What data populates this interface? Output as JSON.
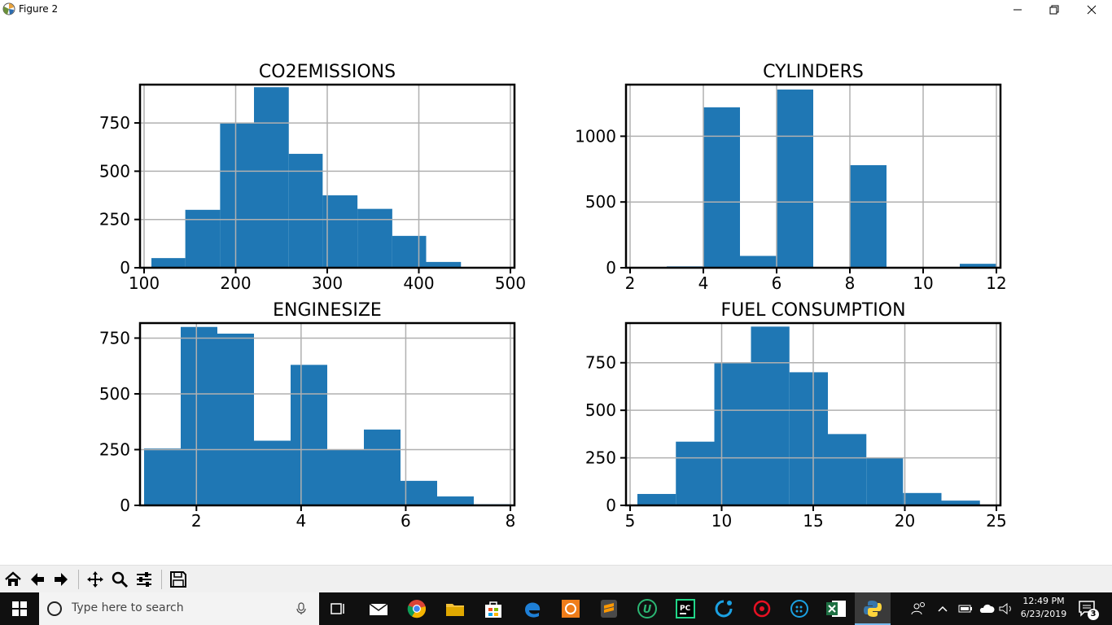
{
  "window": {
    "title": "Figure 2"
  },
  "chart_data": [
    {
      "type": "bar",
      "title": "CO2EMISSIONS",
      "xlim": [
        100,
        500
      ],
      "ylim": [
        0,
        940
      ],
      "xticks": [
        100,
        200,
        300,
        400,
        500
      ],
      "yticks": [
        0,
        250,
        500,
        750
      ],
      "grid": true,
      "bins": [
        {
          "x0": 108,
          "x1": 145,
          "count": 50
        },
        {
          "x0": 145,
          "x1": 183,
          "count": 300
        },
        {
          "x0": 183,
          "x1": 220,
          "count": 750
        },
        {
          "x0": 220,
          "x1": 258,
          "count": 935
        },
        {
          "x0": 258,
          "x1": 295,
          "count": 590
        },
        {
          "x0": 295,
          "x1": 333,
          "count": 375
        },
        {
          "x0": 333,
          "x1": 371,
          "count": 305
        },
        {
          "x0": 371,
          "x1": 408,
          "count": 165
        },
        {
          "x0": 408,
          "x1": 446,
          "count": 30
        },
        {
          "x0": 446,
          "x1": 488,
          "count": 0
        }
      ]
    },
    {
      "type": "bar",
      "title": "CYLINDERS",
      "xlim": [
        2,
        12
      ],
      "ylim": [
        0,
        1380
      ],
      "xticks": [
        2,
        4,
        6,
        8,
        10,
        12
      ],
      "yticks": [
        0,
        500,
        1000
      ],
      "grid": true,
      "bins": [
        {
          "x0": 3,
          "x1": 4,
          "count": 10
        },
        {
          "x0": 4,
          "x1": 5,
          "count": 1220
        },
        {
          "x0": 5,
          "x1": 6,
          "count": 90
        },
        {
          "x0": 6,
          "x1": 7,
          "count": 1355
        },
        {
          "x0": 8,
          "x1": 9,
          "count": 780
        },
        {
          "x0": 11,
          "x1": 12,
          "count": 30
        }
      ]
    },
    {
      "type": "bar",
      "title": "ENGINESIZE",
      "xlim": [
        1,
        8
      ],
      "ylim": [
        0,
        810
      ],
      "xticks": [
        2,
        4,
        6,
        8
      ],
      "yticks": [
        0,
        250,
        500,
        750
      ],
      "grid": true,
      "bins": [
        {
          "x0": 1.0,
          "x1": 1.7,
          "count": 255
        },
        {
          "x0": 1.7,
          "x1": 2.4,
          "count": 800
        },
        {
          "x0": 2.4,
          "x1": 3.1,
          "count": 770
        },
        {
          "x0": 3.1,
          "x1": 3.8,
          "count": 290
        },
        {
          "x0": 3.8,
          "x1": 4.5,
          "count": 630
        },
        {
          "x0": 4.5,
          "x1": 5.2,
          "count": 250
        },
        {
          "x0": 5.2,
          "x1": 5.9,
          "count": 340
        },
        {
          "x0": 5.9,
          "x1": 6.6,
          "count": 110
        },
        {
          "x0": 6.6,
          "x1": 7.3,
          "count": 40
        },
        {
          "x0": 7.3,
          "x1": 8.0,
          "count": 5
        }
      ]
    },
    {
      "type": "bar",
      "title": "FUEL CONSUMPTION",
      "xlim": [
        5,
        25
      ],
      "ylim": [
        0,
        950
      ],
      "xticks": [
        5,
        10,
        15,
        20,
        25
      ],
      "yticks": [
        0,
        250,
        500,
        750
      ],
      "grid": true,
      "bins": [
        {
          "x0": 5.4,
          "x1": 7.5,
          "count": 60
        },
        {
          "x0": 7.5,
          "x1": 9.6,
          "count": 335
        },
        {
          "x0": 9.6,
          "x1": 11.6,
          "count": 750
        },
        {
          "x0": 11.6,
          "x1": 13.7,
          "count": 940
        },
        {
          "x0": 13.7,
          "x1": 15.8,
          "count": 700
        },
        {
          "x0": 15.8,
          "x1": 17.9,
          "count": 375
        },
        {
          "x0": 17.9,
          "x1": 19.9,
          "count": 250
        },
        {
          "x0": 19.9,
          "x1": 22.0,
          "count": 65
        },
        {
          "x0": 22.0,
          "x1": 24.1,
          "count": 25
        },
        {
          "x0": 24.1,
          "x1": 26.2,
          "count": 0
        }
      ]
    }
  ],
  "colors": {
    "bar": "#1f77b4",
    "grid": "#b0b0b0",
    "axis": "#000000"
  },
  "toolbar": {
    "buttons": [
      "home-icon",
      "back-arrow-icon",
      "forward-arrow-icon",
      "pan-icon",
      "zoom-icon",
      "configure-subplots-icon",
      "save-icon"
    ]
  },
  "taskbar": {
    "search_placeholder": "Type here to search",
    "time": "12:49 PM",
    "date": "6/23/2019",
    "notification_count": "3",
    "app_pc_label": "PC"
  }
}
